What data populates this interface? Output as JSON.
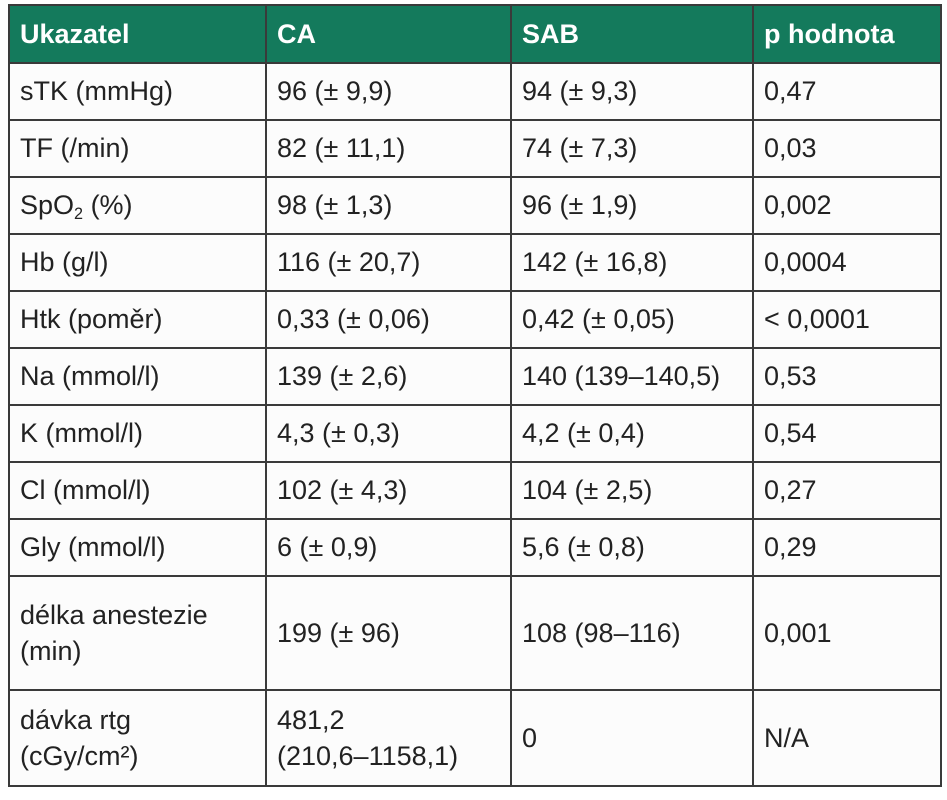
{
  "table": {
    "header": [
      "Ukazatel",
      "CA",
      "SAB",
      "p hodnota"
    ],
    "rows": [
      [
        "sTK (mmHg)",
        "96 (± 9,9)",
        "94 (± 9,3)",
        "0,47"
      ],
      [
        "TF (/min)",
        "82 (± 11,1)",
        "74 (± 7,3)",
        "0,03"
      ],
      [
        {
          "main": "SpO",
          "sub": "2",
          "after": "(%)"
        },
        "98 (± 1,3)",
        "96 (± 1,9)",
        "0,002"
      ],
      [
        "Hb (g/l)",
        "116 (± 20,7)",
        "142 (± 16,8)",
        "0,0004"
      ],
      [
        "Htk (poměr)",
        "0,33 (± 0,06)",
        "0,42 (± 0,05)",
        "< 0,0001"
      ],
      [
        "Na (mmol/l)",
        "139 (± 2,6)",
        "140 (139–140,5)",
        "0,53"
      ],
      [
        "K (mmol/l)",
        "4,3 (± 0,3)",
        "4,2 (± 0,4)",
        "0,54"
      ],
      [
        "Cl (mmol/l)",
        "102 (± 4,3)",
        "104 (± 2,5)",
        "0,27"
      ],
      [
        "Gly (mmol/l)",
        "6 (± 0,9)",
        "5,6 (± 0,8)",
        "0,29"
      ],
      [
        [
          "délka anestezie",
          "(min)"
        ],
        "199 (± 96)",
        "108 (98–116)",
        "0,001"
      ],
      [
        [
          "dávka rtg",
          "(cGy/cm²)"
        ],
        [
          "481,2",
          "(210,6–1158,1)"
        ],
        "0",
        "N/A"
      ]
    ]
  }
}
